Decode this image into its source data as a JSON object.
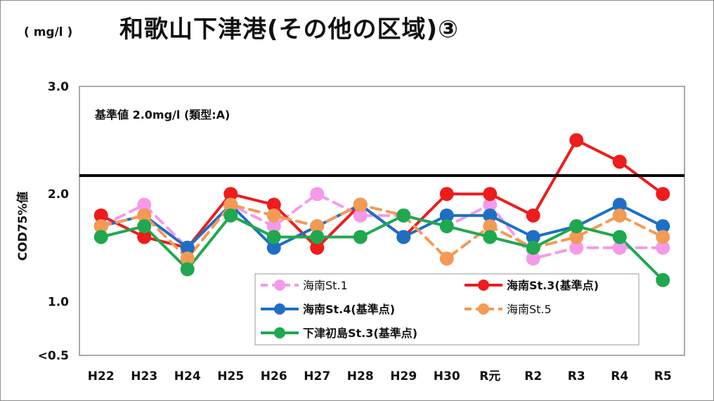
{
  "title": "和歌山下津港(その他の区域)③",
  "unit": "( mg/l )",
  "chart_data": {
    "type": "line",
    "categories": [
      "H22",
      "H23",
      "H24",
      "H25",
      "H26",
      "H27",
      "H28",
      "H29",
      "H30",
      "R元",
      "R2",
      "R3",
      "R4",
      "R5"
    ],
    "ylabel": "COD75%値",
    "yticks": [
      "<0.5",
      "1.0",
      "2.0",
      "3.0"
    ],
    "ylim": [
      0.5,
      3.0
    ],
    "grid": false,
    "standard": {
      "value": 2.0,
      "label": "基準値  2.0mg/l (類型:A)"
    },
    "legend_position": "bottom-right",
    "series": [
      {
        "name": "海南St.1",
        "color": "#f59ae8",
        "dashed": true,
        "values": [
          1.7,
          1.9,
          1.5,
          1.9,
          1.7,
          2.0,
          1.8,
          1.8,
          1.7,
          1.9,
          1.4,
          1.5,
          1.5,
          1.5
        ]
      },
      {
        "name": "海南St.3(基準点)",
        "color": "#ee1c1c",
        "dashed": false,
        "values": [
          1.8,
          1.6,
          1.5,
          2.0,
          1.9,
          1.5,
          1.9,
          1.6,
          2.0,
          2.0,
          1.8,
          2.5,
          2.3,
          2.0
        ]
      },
      {
        "name": "海南St.4(基準点)",
        "color": "#1e6fc3",
        "dashed": false,
        "values": [
          1.7,
          1.8,
          1.5,
          1.9,
          1.5,
          1.7,
          1.9,
          1.6,
          1.8,
          1.8,
          1.6,
          1.7,
          1.9,
          1.7
        ]
      },
      {
        "name": "海南St.5",
        "color": "#f39a55",
        "dashed": true,
        "values": [
          1.7,
          1.8,
          1.4,
          1.9,
          1.8,
          1.7,
          1.9,
          1.8,
          1.4,
          1.7,
          1.5,
          1.6,
          1.8,
          1.6
        ]
      },
      {
        "name": "下津初島St.3(基準点)",
        "color": "#1fa84f",
        "dashed": false,
        "values": [
          1.6,
          1.7,
          1.3,
          1.8,
          1.6,
          1.6,
          1.6,
          1.8,
          1.7,
          1.6,
          1.5,
          1.7,
          1.6,
          1.2
        ]
      }
    ]
  }
}
